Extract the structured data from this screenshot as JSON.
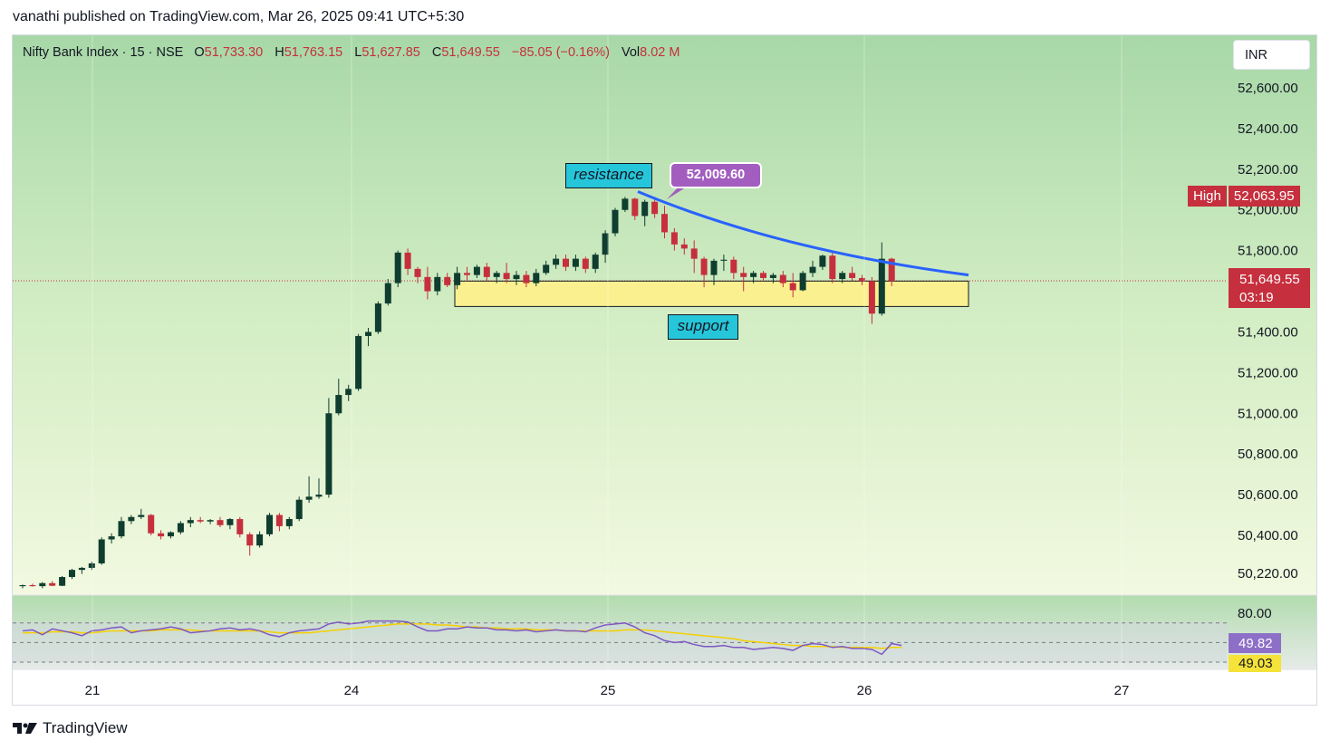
{
  "header": {
    "published_line": "vanathi published on TradingView.com, Mar 26, 2025 09:41 UTC+5:30"
  },
  "legend": {
    "symbol": "Nifty Bank Index · 15 · NSE",
    "open_label": "O",
    "open": "51,733.30",
    "high_label": "H",
    "high": "51,763.15",
    "low_label": "L",
    "low": "51,627.85",
    "close_label": "C",
    "close": "51,649.55",
    "change": "−85.05 (−0.16%)",
    "vol_label": "Vol",
    "vol": "8.02 M"
  },
  "currency": "INR",
  "tags": {
    "high_label": "High",
    "high_value": "52,063.95",
    "last_price": "51,649.55",
    "countdown": "03:19",
    "rsi_value": "49.82",
    "rsi_ma_value": "49.03"
  },
  "annotations": {
    "resistance": "resistance",
    "support": "support",
    "callout": "52,009.60"
  },
  "footer": {
    "brand": "TradingView"
  },
  "colors": {
    "up": "#0f3d2f",
    "down": "#c62f3d",
    "trendline": "#2962ff",
    "support_zone": "#faf08f",
    "rsi": "#7e57c2",
    "rsi_ma": "#f5d000"
  },
  "chart_data": {
    "type": "candlestick",
    "price_axis_ticks": [
      "52,600.00",
      "52,400.00",
      "52,200.00",
      "52,000.00",
      "51,800.00",
      "51,400.00",
      "51,200.00",
      "51,000.00",
      "50,800.00",
      "50,600.00",
      "50,400.00",
      "50,220.00"
    ],
    "time_axis_ticks": [
      "21",
      "24",
      "25",
      "26",
      "27"
    ],
    "rsi_axis_ticks": [
      "80.00"
    ],
    "ylim": [
      50150,
      52760
    ],
    "resistance_line": {
      "from": [
        "25 09:15",
        52090
      ],
      "to": [
        "26 after 11:00",
        51680
      ]
    },
    "support_zone": {
      "low": 51525,
      "high": 51650
    },
    "rsi_levels": [
      70,
      50,
      30
    ],
    "candles": [
      [
        50150,
        50158,
        50140,
        50155
      ],
      [
        50155,
        50162,
        50148,
        50150
      ],
      [
        50150,
        50170,
        50140,
        50165
      ],
      [
        50165,
        50175,
        50150,
        50152
      ],
      [
        50152,
        50200,
        50150,
        50195
      ],
      [
        50195,
        50235,
        50185,
        50230
      ],
      [
        50230,
        50245,
        50210,
        50240
      ],
      [
        50240,
        50270,
        50230,
        50262
      ],
      [
        50262,
        50390,
        50255,
        50380
      ],
      [
        50380,
        50410,
        50360,
        50395
      ],
      [
        50395,
        50490,
        50385,
        50470
      ],
      [
        50470,
        50500,
        50455,
        50490
      ],
      [
        50490,
        50530,
        50480,
        50500
      ],
      [
        50500,
        50505,
        50400,
        50410
      ],
      [
        50410,
        50425,
        50380,
        50395
      ],
      [
        50395,
        50420,
        50385,
        50415
      ],
      [
        50415,
        50470,
        50405,
        50460
      ],
      [
        50460,
        50490,
        50440,
        50475
      ],
      [
        50475,
        50490,
        50460,
        50468
      ],
      [
        50468,
        50480,
        50455,
        50475
      ],
      [
        50475,
        50490,
        50440,
        50450
      ],
      [
        50450,
        50485,
        50430,
        50480
      ],
      [
        50480,
        50490,
        50390,
        50405
      ],
      [
        50405,
        50415,
        50300,
        50350
      ],
      [
        50350,
        50420,
        50340,
        50405
      ],
      [
        50405,
        50510,
        50395,
        50500
      ],
      [
        50500,
        50510,
        50420,
        50445
      ],
      [
        50445,
        50490,
        50430,
        50480
      ],
      [
        50480,
        50590,
        50470,
        50575
      ],
      [
        50575,
        50690,
        50560,
        50590
      ],
      [
        50590,
        50680,
        50580,
        50600
      ],
      [
        50600,
        51075,
        50585,
        51000
      ],
      [
        51000,
        51170,
        50990,
        51090
      ],
      [
        51090,
        51140,
        51060,
        51120
      ],
      [
        51120,
        51390,
        51110,
        51380
      ],
      [
        51380,
        51420,
        51330,
        51400
      ],
      [
        51400,
        51550,
        51390,
        51540
      ],
      [
        51540,
        51660,
        51530,
        51640
      ],
      [
        51640,
        51800,
        51620,
        51790
      ],
      [
        51790,
        51810,
        51680,
        51710
      ],
      [
        51710,
        51720,
        51640,
        51670
      ],
      [
        51670,
        51720,
        51560,
        51600
      ],
      [
        51600,
        51690,
        51580,
        51670
      ],
      [
        51670,
        51690,
        51620,
        51630
      ],
      [
        51630,
        51720,
        51610,
        51690
      ],
      [
        51690,
        51720,
        51650,
        51680
      ],
      [
        51680,
        51730,
        51665,
        51720
      ],
      [
        51720,
        51740,
        51650,
        51670
      ],
      [
        51670,
        51700,
        51640,
        51690
      ],
      [
        51690,
        51740,
        51640,
        51660
      ],
      [
        51660,
        51700,
        51630,
        51680
      ],
      [
        51680,
        51700,
        51620,
        51640
      ],
      [
        51640,
        51710,
        51625,
        51690
      ],
      [
        51690,
        51750,
        51680,
        51730
      ],
      [
        51730,
        51780,
        51710,
        51760
      ],
      [
        51760,
        51780,
        51700,
        51720
      ],
      [
        51720,
        51780,
        51700,
        51760
      ],
      [
        51760,
        51770,
        51690,
        51710
      ],
      [
        51710,
        51790,
        51690,
        51780
      ],
      [
        51780,
        51900,
        51740,
        51885
      ],
      [
        51885,
        52010,
        51870,
        52000
      ],
      [
        52000,
        52064,
        51990,
        52055
      ],
      [
        52055,
        52060,
        51950,
        51970
      ],
      [
        51970,
        52050,
        51920,
        52040
      ],
      [
        52040,
        52050,
        51960,
        51980
      ],
      [
        51980,
        52020,
        51860,
        51890
      ],
      [
        51890,
        51910,
        51800,
        51830
      ],
      [
        51830,
        51860,
        51780,
        51810
      ],
      [
        51810,
        51850,
        51690,
        51760
      ],
      [
        51760,
        51770,
        51620,
        51680
      ],
      [
        51680,
        51760,
        51630,
        51750
      ],
      [
        51750,
        51780,
        51700,
        51755
      ],
      [
        51755,
        51770,
        51660,
        51690
      ],
      [
        51690,
        51720,
        51600,
        51670
      ],
      [
        51670,
        51700,
        51640,
        51690
      ],
      [
        51690,
        51700,
        51650,
        51665
      ],
      [
        51665,
        51690,
        51640,
        51680
      ],
      [
        51680,
        51700,
        51620,
        51640
      ],
      [
        51640,
        51690,
        51570,
        51605
      ],
      [
        51605,
        51700,
        51600,
        51690
      ],
      [
        51690,
        51750,
        51670,
        51720
      ],
      [
        51720,
        51780,
        51705,
        51775
      ],
      [
        51775,
        51790,
        51640,
        51660
      ],
      [
        51660,
        51700,
        51640,
        51690
      ],
      [
        51690,
        51720,
        51650,
        51665
      ],
      [
        51665,
        51680,
        51630,
        51650
      ],
      [
        51650,
        51670,
        51440,
        51490
      ],
      [
        51490,
        51840,
        51480,
        51760
      ],
      [
        51760,
        51765,
        51625,
        51650
      ]
    ],
    "rsi_series": [
      62,
      63,
      58,
      64,
      62,
      60,
      57,
      62,
      63,
      65,
      66,
      60,
      62,
      63,
      64,
      66,
      64,
      60,
      61,
      62,
      64,
      65,
      63,
      64,
      62,
      58,
      56,
      60,
      62,
      63,
      64,
      69,
      71,
      69,
      70,
      72,
      72,
      72,
      72,
      71,
      66,
      62,
      62,
      64,
      64,
      66,
      65,
      65,
      63,
      63,
      62,
      63,
      61,
      62,
      63,
      62,
      62,
      61,
      65,
      68,
      69,
      70,
      66,
      60,
      57,
      52,
      50,
      51,
      48,
      46,
      46,
      47,
      45,
      45,
      43,
      44,
      45,
      44,
      42,
      47,
      49,
      48,
      45,
      46,
      44,
      44,
      43,
      38,
      49,
      47
    ],
    "rsi_ma_series": [
      60,
      60,
      60,
      61,
      61,
      61,
      60,
      60,
      61,
      62,
      62,
      62,
      62,
      62,
      63,
      63,
      63,
      63,
      62,
      62,
      62,
      62,
      62,
      62,
      62,
      61,
      60,
      60,
      60,
      60,
      61,
      62,
      63,
      64,
      65,
      66,
      67,
      68,
      69,
      69,
      69,
      69,
      68,
      68,
      67,
      66,
      66,
      65,
      65,
      64,
      64,
      64,
      63,
      63,
      63,
      62,
      62,
      62,
      62,
      62,
      62,
      63,
      63,
      63,
      62,
      61,
      60,
      59,
      58,
      57,
      56,
      55,
      54,
      52,
      51,
      50,
      49,
      48,
      47,
      47,
      46,
      46,
      46,
      45,
      45,
      45,
      45,
      44,
      45,
      45
    ]
  }
}
